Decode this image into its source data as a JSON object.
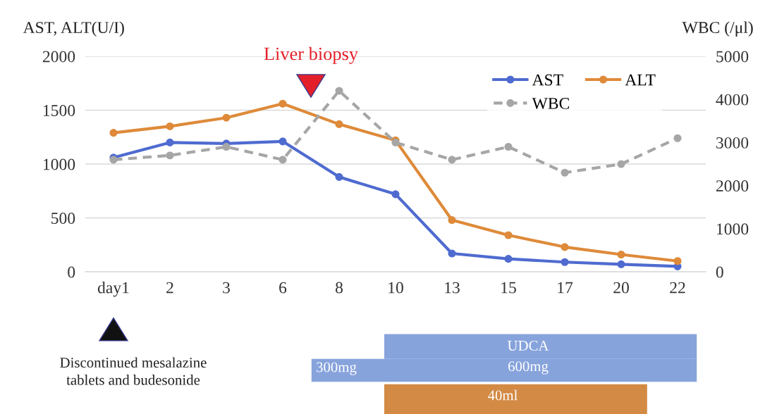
{
  "chart_data": {
    "type": "line",
    "ylabel": "AST, ALT(U/I)",
    "y2label": "WBC (/μl)",
    "categories": [
      "day1",
      "2",
      "3",
      "6",
      "8",
      "10",
      "13",
      "15",
      "17",
      "20",
      "22"
    ],
    "series": [
      {
        "name": "AST",
        "color": "#4f6bd0",
        "values": [
          1060,
          1200,
          1190,
          1210,
          880,
          720,
          170,
          120,
          90,
          70,
          50
        ]
      },
      {
        "name": "ALT",
        "color": "#de8a3a",
        "values": [
          1290,
          1350,
          1430,
          1560,
          1370,
          1220,
          480,
          340,
          230,
          160,
          100
        ]
      },
      {
        "name": "WBC",
        "color": "#a6a6a6",
        "axis": "y2",
        "line_style": "dashed",
        "values": [
          2600,
          2700,
          2900,
          2600,
          4200,
          3000,
          2600,
          2900,
          2300,
          2500,
          3100
        ]
      }
    ],
    "ylim": [
      0,
      2000
    ],
    "yticks": [
      0,
      500,
      1000,
      1500,
      2000
    ],
    "y2lim": [
      0,
      5000
    ],
    "y2ticks": [
      0,
      1000,
      2000,
      3000,
      4000,
      5000
    ],
    "grid": "y",
    "legend": "top right",
    "marker": "circle",
    "line_style": "solid",
    "annotations": [
      "Liver biopsy",
      "Discontinued mesalazine\ntablets and budesonide",
      "UDCA",
      "300mg",
      "600mg",
      "40ml"
    ]
  }
}
